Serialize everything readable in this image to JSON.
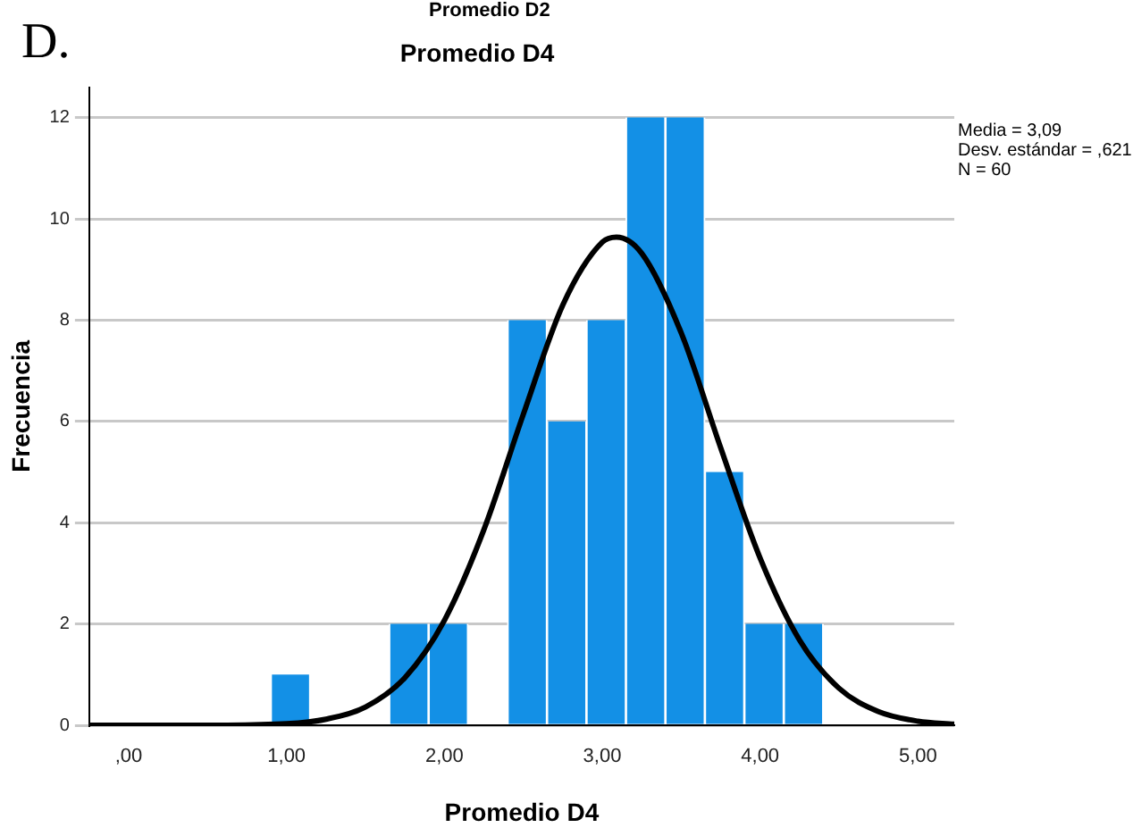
{
  "chart_data": {
    "type": "histogram",
    "title": "Promedio D4",
    "xlabel": "Promedio D4",
    "ylabel": "Frecuencia",
    "annotations": [
      "D.",
      "Promedio D2",
      "Media = 3,09",
      "Desv. estándar = ,621",
      "N = 60"
    ],
    "bins": [
      0.9,
      1.15,
      1.4,
      1.65,
      1.9,
      2.15,
      2.4,
      2.65,
      2.9,
      3.15,
      3.4,
      3.65,
      3.9,
      4.15,
      4.4
    ],
    "values": [
      1,
      0,
      0,
      2,
      2,
      0,
      8,
      6,
      8,
      12,
      12,
      5,
      2,
      2
    ],
    "color": "#1390e6",
    "series": [
      {
        "type": "line",
        "color": "#000000",
        "x": [
          -0.25,
          0,
          0.5,
          1.0,
          1.25,
          1.5,
          1.75,
          2.0,
          2.25,
          2.5,
          2.75,
          3.0,
          3.09,
          3.25,
          3.5,
          3.75,
          4.0,
          4.25,
          4.5,
          4.75,
          5.0,
          5.23
        ],
        "values": [
          0,
          0,
          0,
          0.03,
          0.12,
          0.36,
          0.94,
          2.07,
          3.86,
          6.14,
          8.3,
          9.54,
          9.64,
          9.32,
          7.75,
          5.48,
          3.3,
          1.68,
          0.73,
          0.27,
          0.08,
          0.02
        ]
      }
    ],
    "xlim": [
      -0.25,
      5.23
    ],
    "ylim": [
      0,
      12.6
    ],
    "xticks": [
      {
        "value": 0,
        "label": ",00"
      },
      {
        "value": 1,
        "label": "1,00"
      },
      {
        "value": 2,
        "label": "2,00"
      },
      {
        "value": 3,
        "label": "3,00"
      },
      {
        "value": 4,
        "label": "4,00"
      },
      {
        "value": 5,
        "label": "5,00"
      }
    ],
    "yticks": [
      0,
      2,
      4,
      6,
      8,
      10,
      12
    ],
    "grid": "y"
  }
}
